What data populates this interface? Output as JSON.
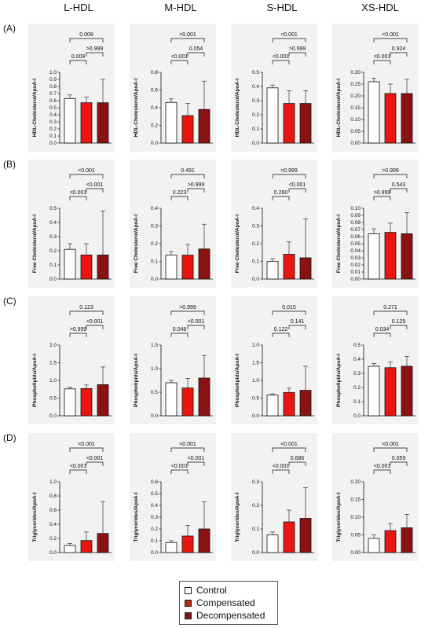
{
  "columns": [
    "L-HDL",
    "M-HDL",
    "S-HDL",
    "XS-HDL"
  ],
  "rows": [
    "(A)",
    "(B)",
    "(C)",
    "(D)"
  ],
  "legend": {
    "items": [
      {
        "label": "Control",
        "color": "#ffffff"
      },
      {
        "label": "Compensated",
        "color": "#b82a10"
      },
      {
        "label": "Decompensated",
        "color": "#801515"
      }
    ]
  },
  "colors": {
    "panel_bg": "#f2f2f2",
    "control": "#ffffff",
    "compensated": "#e8160f",
    "decompensated": "#8b1212"
  },
  "chart_data": [
    {
      "type": "bar",
      "row": "(A)",
      "col": "L-HDL",
      "ylabel": "HDL-Cholesterol/ApoA-I",
      "ylim": [
        0,
        1.0
      ],
      "ticks": [
        "0.0",
        "0.1",
        "0.2",
        "0.3",
        "0.4",
        "0.5",
        "0.6",
        "0.7",
        "0.8",
        "0.9",
        "1.0"
      ],
      "categories": [
        "Control",
        "Compensated",
        "Decompensated"
      ],
      "values": [
        0.63,
        0.57,
        0.57
      ],
      "errors": [
        0.05,
        0.08,
        0.33
      ],
      "pvalues": [
        {
          "pair": [
            0,
            1
          ],
          "text": "0.009"
        },
        {
          "pair": [
            1,
            2
          ],
          "text": ">0.999"
        },
        {
          "pair": [
            0,
            2
          ],
          "text": "0.008"
        }
      ]
    },
    {
      "type": "bar",
      "row": "(A)",
      "col": "M-HDL",
      "ylabel": "HDL-Cholesterol/ApoA-I",
      "ylim": [
        0,
        0.8
      ],
      "ticks": [
        "0.0",
        "0.2",
        "0.4",
        "0.6",
        "0.8"
      ],
      "categories": [
        "Control",
        "Compensated",
        "Decompensated"
      ],
      "values": [
        0.46,
        0.31,
        0.38
      ],
      "errors": [
        0.04,
        0.14,
        0.32
      ],
      "pvalues": [
        {
          "pair": [
            0,
            1
          ],
          "text": "<0.001"
        },
        {
          "pair": [
            1,
            2
          ],
          "text": "0.054"
        },
        {
          "pair": [
            0,
            2
          ],
          "text": "<0.001"
        }
      ]
    },
    {
      "type": "bar",
      "row": "(A)",
      "col": "S-HDL",
      "ylabel": "HDL-Cholesterol/ApoA-I",
      "ylim": [
        0,
        0.5
      ],
      "ticks": [
        "0.0",
        "0.1",
        "0.2",
        "0.3",
        "0.4",
        "0.5"
      ],
      "categories": [
        "Control",
        "Compensated",
        "Decompensated"
      ],
      "values": [
        0.39,
        0.28,
        0.28
      ],
      "errors": [
        0.02,
        0.09,
        0.09
      ],
      "pvalues": [
        {
          "pair": [
            0,
            1
          ],
          "text": "<0.001"
        },
        {
          "pair": [
            1,
            2
          ],
          "text": ">0.999"
        },
        {
          "pair": [
            0,
            2
          ],
          "text": "<0.001"
        }
      ]
    },
    {
      "type": "bar",
      "row": "(A)",
      "col": "XS-HDL",
      "ylabel": "HDL-Cholesterol/ApoA-I",
      "ylim": [
        0,
        0.3
      ],
      "ticks": [
        "0.00",
        "0.05",
        "0.10",
        "0.15",
        "0.20",
        "0.25",
        "0.30"
      ],
      "categories": [
        "Control",
        "Compensated",
        "Decompensated"
      ],
      "values": [
        0.26,
        0.21,
        0.21
      ],
      "errors": [
        0.015,
        0.04,
        0.06
      ],
      "pvalues": [
        {
          "pair": [
            0,
            1
          ],
          "text": "<0.001"
        },
        {
          "pair": [
            1,
            2
          ],
          "text": "0.924"
        },
        {
          "pair": [
            0,
            2
          ],
          "text": "<0.001"
        }
      ]
    },
    {
      "type": "bar",
      "row": "(B)",
      "col": "L-HDL",
      "ylabel": "Free Cholesterol/ApoA-I",
      "ylim": [
        0,
        0.5
      ],
      "ticks": [
        "0.0",
        "0.1",
        "0.2",
        "0.3",
        "0.4",
        "0.5"
      ],
      "categories": [
        "Control",
        "Compensated",
        "Decompensated"
      ],
      "values": [
        0.21,
        0.17,
        0.17
      ],
      "errors": [
        0.04,
        0.08,
        0.31
      ],
      "pvalues": [
        {
          "pair": [
            0,
            1
          ],
          "text": "<0.001"
        },
        {
          "pair": [
            1,
            2
          ],
          "text": "<0.001"
        },
        {
          "pair": [
            0,
            2
          ],
          "text": "<0.001"
        }
      ]
    },
    {
      "type": "bar",
      "row": "(B)",
      "col": "M-HDL",
      "ylabel": "Free Cholesterol/ApoA-I",
      "ylim": [
        0,
        0.4
      ],
      "ticks": [
        "0.0",
        "0.1",
        "0.2",
        "0.3",
        "0.4"
      ],
      "categories": [
        "Control",
        "Compensated",
        "Decompensated"
      ],
      "values": [
        0.135,
        0.135,
        0.17
      ],
      "errors": [
        0.02,
        0.06,
        0.14
      ],
      "pvalues": [
        {
          "pair": [
            0,
            1
          ],
          "text": "0.223"
        },
        {
          "pair": [
            1,
            2
          ],
          "text": ">0.999"
        },
        {
          "pair": [
            0,
            2
          ],
          "text": "0.491"
        }
      ]
    },
    {
      "type": "bar",
      "row": "(B)",
      "col": "S-HDL",
      "ylabel": "Free Cholesterol/ApoA-I",
      "ylim": [
        0,
        0.4
      ],
      "ticks": [
        "0.0",
        "0.1",
        "0.2",
        "0.3",
        "0.4"
      ],
      "categories": [
        "Control",
        "Compensated",
        "Decompensated"
      ],
      "values": [
        0.1,
        0.14,
        0.12
      ],
      "errors": [
        0.015,
        0.07,
        0.22
      ],
      "pvalues": [
        {
          "pair": [
            0,
            1
          ],
          "text": "0.260"
        },
        {
          "pair": [
            1,
            2
          ],
          "text": "<0.001"
        },
        {
          "pair": [
            0,
            2
          ],
          "text": ">0.999"
        }
      ]
    },
    {
      "type": "bar",
      "row": "(B)",
      "col": "XS-HDL",
      "ylabel": "Free Cholesterol/ApoA-I",
      "ylim": [
        0,
        0.1
      ],
      "ticks": [
        "0.00",
        "0.01",
        "0.02",
        "0.03",
        "0.04",
        "0.05",
        "0.06",
        "0.07",
        "0.08",
        "0.09",
        "0.10"
      ],
      "categories": [
        "Control",
        "Compensated",
        "Decompensated"
      ],
      "values": [
        0.064,
        0.066,
        0.064
      ],
      "errors": [
        0.007,
        0.013,
        0.03
      ],
      "pvalues": [
        {
          "pair": [
            0,
            1
          ],
          "text": ">0.999"
        },
        {
          "pair": [
            1,
            2
          ],
          "text": "0.543"
        },
        {
          "pair": [
            0,
            2
          ],
          "text": ">0.999"
        }
      ]
    },
    {
      "type": "bar",
      "row": "(C)",
      "col": "L-HDL",
      "ylabel": "Phospholipids/ApoA-I",
      "ylim": [
        0,
        2.0
      ],
      "ticks": [
        "0.0",
        "0.5",
        "1.0",
        "1.5",
        "2.0"
      ],
      "categories": [
        "Control",
        "Compensated",
        "Decompensated"
      ],
      "values": [
        0.76,
        0.77,
        0.88
      ],
      "errors": [
        0.05,
        0.1,
        0.5
      ],
      "pvalues": [
        {
          "pair": [
            0,
            1
          ],
          "text": ">0.999"
        },
        {
          "pair": [
            1,
            2
          ],
          "text": "<0.001"
        },
        {
          "pair": [
            0,
            2
          ],
          "text": "0.123"
        }
      ]
    },
    {
      "type": "bar",
      "row": "(C)",
      "col": "M-HDL",
      "ylabel": "Phospholipids/ApoA-I",
      "ylim": [
        0,
        1.5
      ],
      "ticks": [
        "0.0",
        "0.5",
        "1.0",
        "1.5"
      ],
      "categories": [
        "Control",
        "Compensated",
        "Decompensated"
      ],
      "values": [
        0.7,
        0.59,
        0.8
      ],
      "errors": [
        0.05,
        0.2,
        0.48
      ],
      "pvalues": [
        {
          "pair": [
            0,
            1
          ],
          "text": "0.048"
        },
        {
          "pair": [
            1,
            2
          ],
          "text": "<0.001"
        },
        {
          "pair": [
            0,
            2
          ],
          "text": ">0.999"
        }
      ]
    },
    {
      "type": "bar",
      "row": "(C)",
      "col": "S-HDL",
      "ylabel": "Phospholipids/ApoA-I",
      "ylim": [
        0,
        2.0
      ],
      "ticks": [
        "0.0",
        "0.5",
        "1.0",
        "1.5",
        "2.0"
      ],
      "categories": [
        "Control",
        "Compensated",
        "Decompensated"
      ],
      "values": [
        0.59,
        0.66,
        0.72
      ],
      "errors": [
        0.03,
        0.12,
        0.68
      ],
      "pvalues": [
        {
          "pair": [
            0,
            1
          ],
          "text": "0.122"
        },
        {
          "pair": [
            1,
            2
          ],
          "text": "0.141"
        },
        {
          "pair": [
            0,
            2
          ],
          "text": "0.015"
        }
      ]
    },
    {
      "type": "bar",
      "row": "(C)",
      "col": "XS-HDL",
      "ylabel": "Phospholipids/ApoA-I",
      "ylim": [
        0,
        0.5
      ],
      "ticks": [
        "0.0",
        "0.1",
        "0.2",
        "0.3",
        "0.4",
        "0.5"
      ],
      "categories": [
        "Control",
        "Compensated",
        "Decompensated"
      ],
      "values": [
        0.35,
        0.34,
        0.35
      ],
      "errors": [
        0.02,
        0.04,
        0.07
      ],
      "pvalues": [
        {
          "pair": [
            0,
            1
          ],
          "text": "0.034"
        },
        {
          "pair": [
            1,
            2
          ],
          "text": "0.129"
        },
        {
          "pair": [
            0,
            2
          ],
          "text": "0.271"
        }
      ]
    },
    {
      "type": "bar",
      "row": "(D)",
      "col": "L-HDL",
      "ylabel": "Triglycerides/ApoA-I",
      "ylim": [
        0,
        1.0
      ],
      "ticks": [
        "0.0",
        "0.2",
        "0.4",
        "0.6",
        "0.8",
        "1.0"
      ],
      "categories": [
        "Control",
        "Compensated",
        "Decompensated"
      ],
      "values": [
        0.1,
        0.17,
        0.27
      ],
      "errors": [
        0.03,
        0.12,
        0.45
      ],
      "pvalues": [
        {
          "pair": [
            0,
            1
          ],
          "text": "<0.001"
        },
        {
          "pair": [
            1,
            2
          ],
          "text": "<0.001"
        },
        {
          "pair": [
            0,
            2
          ],
          "text": "<0.001"
        }
      ]
    },
    {
      "type": "bar",
      "row": "(D)",
      "col": "M-HDL",
      "ylabel": "Triglycerides/ApoA-I",
      "ylim": [
        0,
        0.6
      ],
      "ticks": [
        "0.0",
        "0.1",
        "0.2",
        "0.3",
        "0.4",
        "0.5",
        "0.6"
      ],
      "categories": [
        "Control",
        "Compensated",
        "Decompensated"
      ],
      "values": [
        0.085,
        0.14,
        0.2
      ],
      "errors": [
        0.015,
        0.09,
        0.23
      ],
      "pvalues": [
        {
          "pair": [
            0,
            1
          ],
          "text": "<0.001"
        },
        {
          "pair": [
            1,
            2
          ],
          "text": "<0.001"
        },
        {
          "pair": [
            0,
            2
          ],
          "text": "<0.001"
        }
      ]
    },
    {
      "type": "bar",
      "row": "(D)",
      "col": "S-HDL",
      "ylabel": "Triglycerides/ApoA-I",
      "ylim": [
        0,
        0.3
      ],
      "ticks": [
        "0.0",
        "0.1",
        "0.2",
        "0.3"
      ],
      "categories": [
        "Control",
        "Compensated",
        "Decompensated"
      ],
      "values": [
        0.075,
        0.13,
        0.145
      ],
      "errors": [
        0.012,
        0.05,
        0.13
      ],
      "pvalues": [
        {
          "pair": [
            0,
            1
          ],
          "text": "<0.001"
        },
        {
          "pair": [
            1,
            2
          ],
          "text": "0.686"
        },
        {
          "pair": [
            0,
            2
          ],
          "text": "<0.001"
        }
      ]
    },
    {
      "type": "bar",
      "row": "(D)",
      "col": "XS-HDL",
      "ylabel": "Triglycerides/ApoA-I",
      "ylim": [
        0,
        0.2
      ],
      "ticks": [
        "0.00",
        "0.05",
        "0.10",
        "0.15",
        "0.20"
      ],
      "categories": [
        "Control",
        "Compensated",
        "Decompensated"
      ],
      "values": [
        0.04,
        0.062,
        0.07
      ],
      "errors": [
        0.01,
        0.02,
        0.038
      ],
      "pvalues": [
        {
          "pair": [
            0,
            1
          ],
          "text": "<0.001"
        },
        {
          "pair": [
            1,
            2
          ],
          "text": "0.059"
        },
        {
          "pair": [
            0,
            2
          ],
          "text": "<0.001"
        }
      ]
    }
  ]
}
